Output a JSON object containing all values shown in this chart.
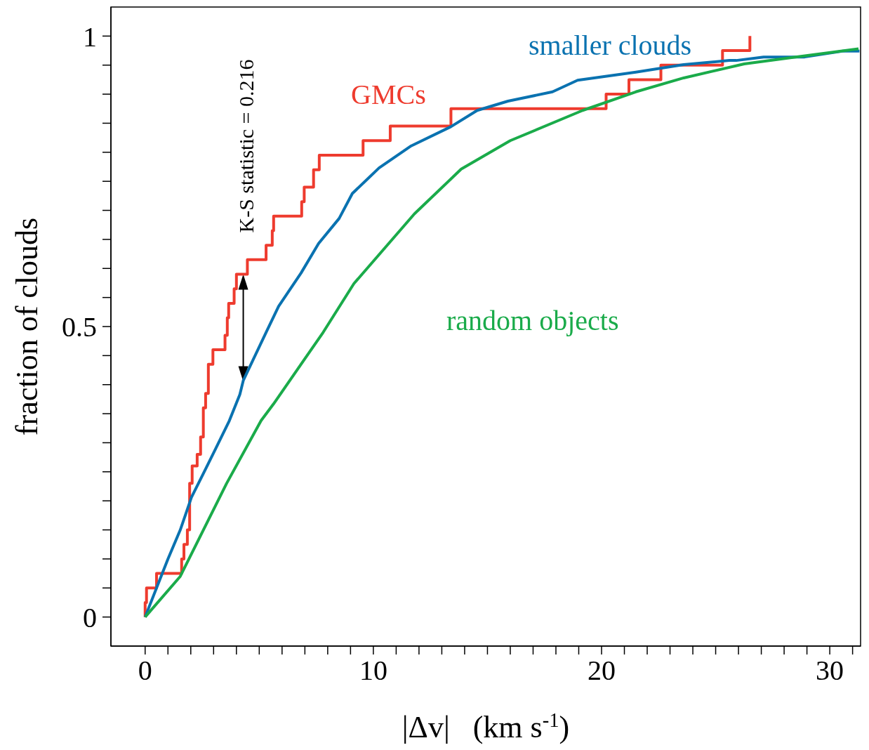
{
  "chart_data": {
    "type": "line",
    "xlabel": "|Δv|   (km s$^{-1}$)",
    "ylabel": "fraction of clouds",
    "xlim": [
      -1.5,
      31.35
    ],
    "ylim": [
      -0.05,
      1.05
    ],
    "xticks": [
      0,
      {
        "value": 1,
        "label": null
      },
      {
        "value": 2,
        "label": null
      },
      {
        "value": 3,
        "label": null
      },
      {
        "value": 4,
        "label": null
      },
      {
        "value": 5,
        "label": null
      },
      {
        "value": 6,
        "label": null
      },
      {
        "value": 7,
        "label": null
      },
      {
        "value": 8,
        "label": null
      },
      {
        "value": 9,
        "label": null
      },
      10,
      {
        "value": 11,
        "label": null
      },
      {
        "value": 12,
        "label": null
      },
      {
        "value": 13,
        "label": null
      },
      {
        "value": 14,
        "label": null
      },
      {
        "value": 15,
        "label": null
      },
      {
        "value": 16,
        "label": null
      },
      {
        "value": 17,
        "label": null
      },
      {
        "value": 18,
        "label": null
      },
      {
        "value": 19,
        "label": null
      },
      20,
      {
        "value": 21,
        "label": null
      },
      {
        "value": 22,
        "label": null
      },
      {
        "value": 23,
        "label": null
      },
      {
        "value": 24,
        "label": null
      },
      {
        "value": 25,
        "label": null
      },
      {
        "value": 26,
        "label": null
      },
      {
        "value": 27,
        "label": null
      },
      {
        "value": 28,
        "label": null
      },
      {
        "value": 29,
        "label": null
      },
      30,
      {
        "value": 31,
        "label": null
      }
    ],
    "yticks": [
      0,
      {
        "value": 0.05,
        "label": null
      },
      {
        "value": 0.1,
        "label": null
      },
      {
        "value": 0.15,
        "label": null
      },
      {
        "value": 0.2,
        "label": null
      },
      {
        "value": 0.25,
        "label": null
      },
      {
        "value": 0.3,
        "label": null
      },
      {
        "value": 0.35,
        "label": null
      },
      {
        "value": 0.4,
        "label": null
      },
      {
        "value": 0.45,
        "label": null
      },
      0.5,
      {
        "value": 0.55,
        "label": null
      },
      {
        "value": 0.6,
        "label": null
      },
      {
        "value": 0.65,
        "label": null
      },
      {
        "value": 0.7,
        "label": null
      },
      {
        "value": 0.75,
        "label": null
      },
      {
        "value": 0.8,
        "label": null
      },
      {
        "value": 0.85,
        "label": null
      },
      {
        "value": 0.9,
        "label": null
      },
      {
        "value": 0.95,
        "label": null
      },
      1
    ],
    "marker": "none",
    "line_style": "solid",
    "annotations": [
      "K-S statistic = 0.216"
    ],
    "series": [
      {
        "name": "GMCs",
        "type": "step",
        "color": "#ee3b2e",
        "x": [
          0,
          0,
          0.06,
          0.5,
          1.6,
          1.7,
          1.85,
          1.95,
          2.06,
          2.28,
          2.43,
          2.55,
          2.65,
          2.77,
          2.97,
          3.5,
          3.6,
          3.66,
          3.9,
          4.0,
          4.48,
          5.3,
          5.57,
          5.63,
          6.86,
          6.97,
          7.38,
          7.63,
          9.55,
          10.74,
          13.4,
          20.2,
          21.2,
          22.6,
          25.3,
          26.5
        ],
        "values": [
          0,
          0.025,
          0.05,
          0.075,
          0.1,
          0.125,
          0.15,
          0.23,
          0.26,
          0.28,
          0.31,
          0.36,
          0.385,
          0.435,
          0.46,
          0.485,
          0.515,
          0.54,
          0.565,
          0.59,
          0.615,
          0.64,
          0.665,
          0.69,
          0.715,
          0.74,
          0.77,
          0.795,
          0.82,
          0.845,
          0.875,
          0.9,
          0.925,
          0.95,
          0.975,
          1.0
        ]
      },
      {
        "name": "smaller clouds",
        "color": "#0a72b0",
        "x": [
          0,
          0.5,
          1.0,
          1.54,
          2.03,
          2.55,
          3.08,
          3.69,
          4.15,
          4.3,
          5.3,
          5.85,
          6.83,
          7.6,
          8.5,
          9.08,
          10.25,
          11.66,
          13.4,
          14.55,
          15.9,
          17.85,
          18.95,
          21.5,
          23.6,
          25.6,
          25.9,
          27.1,
          28.9,
          30.55,
          31.3
        ],
        "values": [
          0,
          0.05,
          0.1,
          0.15,
          0.206,
          0.247,
          0.289,
          0.338,
          0.383,
          0.407,
          0.49,
          0.535,
          0.592,
          0.643,
          0.686,
          0.729,
          0.773,
          0.811,
          0.844,
          0.872,
          0.888,
          0.904,
          0.924,
          0.938,
          0.951,
          0.958,
          0.958,
          0.964,
          0.964,
          0.974,
          0.974
        ]
      },
      {
        "name": "random objects",
        "color": "#1aab4a",
        "x": [
          0,
          1.54,
          3.57,
          5.08,
          5.63,
          7.8,
          9.15,
          11.8,
          13.85,
          16.0,
          19.17,
          21.5,
          23.6,
          26.25,
          28.5,
          31.26
        ],
        "values": [
          0,
          0.07,
          0.23,
          0.338,
          0.367,
          0.49,
          0.574,
          0.694,
          0.771,
          0.82,
          0.872,
          0.904,
          0.928,
          0.952,
          0.964,
          0.978
        ]
      }
    ]
  }
}
